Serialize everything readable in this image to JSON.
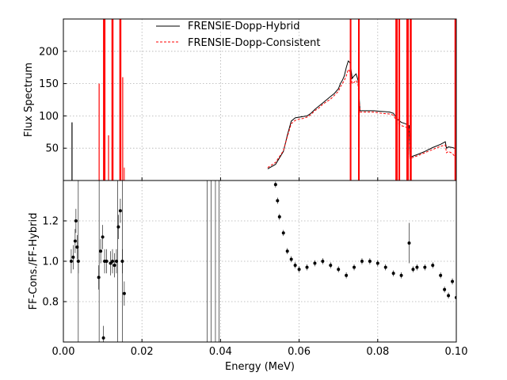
{
  "chart_data": [
    {
      "type": "line",
      "panel": "top",
      "ylabel": "Flux Spectrum",
      "xlim": [
        0.0,
        0.1
      ],
      "ylim": [
        0,
        250
      ],
      "yticks": [
        50,
        100,
        150,
        200
      ],
      "grid": true,
      "legend": {
        "placement": "top-center"
      },
      "series": [
        {
          "name": "FRENSIE-Dopp-Hybrid",
          "color": "#000000",
          "style": "solid",
          "points": [
            [
              0.052,
              18
            ],
            [
              0.054,
              25
            ],
            [
              0.056,
              45
            ],
            [
              0.057,
              70
            ],
            [
              0.058,
              92
            ],
            [
              0.059,
              97
            ],
            [
              0.06,
              98
            ],
            [
              0.061,
              99
            ],
            [
              0.062,
              100
            ],
            [
              0.063,
              104
            ],
            [
              0.064,
              110
            ],
            [
              0.065,
              115
            ],
            [
              0.066,
              120
            ],
            [
              0.067,
              125
            ],
            [
              0.068,
              130
            ],
            [
              0.069,
              135
            ],
            [
              0.07,
              142
            ],
            [
              0.0705,
              150
            ],
            [
              0.071,
              155
            ],
            [
              0.0715,
              162
            ],
            [
              0.072,
              175
            ],
            [
              0.0725,
              185
            ],
            [
              0.073,
              182
            ],
            [
              0.0735,
              158
            ],
            [
              0.074,
              162
            ],
            [
              0.0745,
              165
            ],
            [
              0.075,
              155
            ],
            [
              0.0755,
              108
            ],
            [
              0.077,
              108
            ],
            [
              0.079,
              108
            ],
            [
              0.081,
              107
            ],
            [
              0.083,
              106
            ],
            [
              0.084,
              104
            ],
            [
              0.085,
              95
            ],
            [
              0.086,
              90
            ],
            [
              0.087,
              88
            ],
            [
              0.088,
              85
            ],
            [
              0.0882,
              36
            ],
            [
              0.09,
              40
            ],
            [
              0.092,
              45
            ],
            [
              0.094,
              51
            ],
            [
              0.096,
              56
            ],
            [
              0.0972,
              60
            ],
            [
              0.0975,
              50
            ],
            [
              0.098,
              52
            ],
            [
              0.099,
              51
            ],
            [
              0.1,
              49
            ]
          ]
        },
        {
          "name": "FRENSIE-Dopp-Consistent",
          "color": "#ff0000",
          "style": "dashed",
          "points": [
            [
              0.052,
              20
            ],
            [
              0.054,
              28
            ],
            [
              0.056,
              46
            ],
            [
              0.057,
              68
            ],
            [
              0.058,
              88
            ],
            [
              0.059,
              93
            ],
            [
              0.06,
              95
            ],
            [
              0.061,
              96
            ],
            [
              0.062,
              98
            ],
            [
              0.063,
              102
            ],
            [
              0.064,
              108
            ],
            [
              0.065,
              112
            ],
            [
              0.066,
              118
            ],
            [
              0.067,
              122
            ],
            [
              0.068,
              126
            ],
            [
              0.069,
              132
            ],
            [
              0.07,
              138
            ],
            [
              0.0705,
              145
            ],
            [
              0.071,
              150
            ],
            [
              0.0715,
              155
            ],
            [
              0.072,
              162
            ],
            [
              0.0725,
              172
            ],
            [
              0.073,
              168
            ],
            [
              0.0735,
              150
            ],
            [
              0.074,
              152
            ],
            [
              0.0745,
              155
            ],
            [
              0.075,
              148
            ],
            [
              0.0755,
              106
            ],
            [
              0.077,
              106
            ],
            [
              0.079,
              106
            ],
            [
              0.081,
              104
            ],
            [
              0.083,
              103
            ],
            [
              0.084,
              101
            ],
            [
              0.085,
              90
            ],
            [
              0.086,
              85
            ],
            [
              0.087,
              83
            ],
            [
              0.088,
              80
            ],
            [
              0.0882,
              34
            ],
            [
              0.09,
              38
            ],
            [
              0.092,
              43
            ],
            [
              0.094,
              48
            ],
            [
              0.096,
              53
            ],
            [
              0.0972,
              55
            ],
            [
              0.0975,
              43
            ],
            [
              0.098,
              45
            ],
            [
              0.099,
              42
            ],
            [
              0.1,
              34
            ]
          ]
        }
      ]
    },
    {
      "type": "scatter",
      "panel": "bottom",
      "xlabel": "Energy (MeV)",
      "ylabel": "FF-Cons./FF-Hybrid",
      "xlim": [
        0.0,
        0.1
      ],
      "ylim": [
        0.6,
        1.4
      ],
      "yticks": [
        0.8,
        1.0,
        1.2
      ],
      "xticks": [
        "0.00",
        "0.02",
        "0.04",
        "0.06",
        "0.08",
        "0.10"
      ],
      "grid": true,
      "series": [
        {
          "name": "",
          "color": "#000000",
          "points": [
            [
              0.002,
              1.0
            ],
            [
              0.0025,
              1.02
            ],
            [
              0.003,
              1.1
            ],
            [
              0.0032,
              1.2
            ],
            [
              0.0035,
              1.07
            ],
            [
              0.0038,
              1.0
            ],
            [
              0.009,
              0.92
            ],
            [
              0.0095,
              1.05
            ],
            [
              0.01,
              1.12
            ],
            [
              0.0102,
              0.62
            ],
            [
              0.0105,
              1.0
            ],
            [
              0.011,
              1.0
            ],
            [
              0.012,
              0.99
            ],
            [
              0.0125,
              1.0
            ],
            [
              0.013,
              0.98
            ],
            [
              0.0135,
              1.0
            ],
            [
              0.014,
              1.17
            ],
            [
              0.0145,
              1.25
            ],
            [
              0.015,
              1.0
            ],
            [
              0.0155,
              0.84
            ],
            [
              0.054,
              1.38
            ],
            [
              0.0545,
              1.3
            ],
            [
              0.055,
              1.22
            ],
            [
              0.056,
              1.14
            ],
            [
              0.057,
              1.05
            ],
            [
              0.058,
              1.01
            ],
            [
              0.059,
              0.98
            ],
            [
              0.06,
              0.96
            ],
            [
              0.062,
              0.97
            ],
            [
              0.064,
              0.99
            ],
            [
              0.066,
              1.0
            ],
            [
              0.068,
              0.98
            ],
            [
              0.07,
              0.96
            ],
            [
              0.072,
              0.93
            ],
            [
              0.074,
              0.97
            ],
            [
              0.076,
              1.0
            ],
            [
              0.078,
              1.0
            ],
            [
              0.08,
              0.99
            ],
            [
              0.082,
              0.97
            ],
            [
              0.084,
              0.94
            ],
            [
              0.086,
              0.93
            ],
            [
              0.088,
              1.09
            ],
            [
              0.089,
              0.96
            ],
            [
              0.09,
              0.97
            ],
            [
              0.092,
              0.97
            ],
            [
              0.094,
              0.98
            ],
            [
              0.096,
              0.93
            ],
            [
              0.097,
              0.86
            ],
            [
              0.098,
              0.83
            ],
            [
              0.099,
              0.9
            ],
            [
              0.1,
              0.82
            ]
          ]
        }
      ]
    }
  ]
}
